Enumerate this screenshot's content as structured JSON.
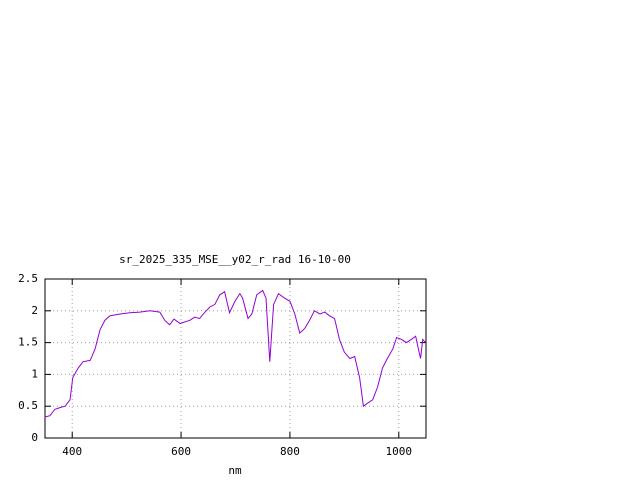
{
  "chart_data": {
    "type": "line",
    "title": "sr_2025_335_MSE__y02_r_rad 16-10-00",
    "x_label": "nm",
    "x": [
      350,
      359,
      368,
      378,
      387,
      396,
      401,
      411,
      420,
      433,
      442,
      451,
      460,
      469,
      488,
      506,
      524,
      543,
      561,
      570,
      579,
      587,
      598,
      616,
      625,
      634,
      644,
      653,
      662,
      671,
      680,
      689,
      699,
      708,
      713,
      723,
      730,
      739,
      750,
      756,
      763,
      770,
      779,
      790,
      800,
      809,
      818,
      827,
      836,
      845,
      855,
      864,
      873,
      882,
      891,
      900,
      910,
      919,
      928,
      935,
      943,
      952,
      961,
      970,
      979,
      989,
      996,
      1005,
      1014,
      1023,
      1031,
      1036,
      1040,
      1044,
      1049
    ],
    "series": [
      {
        "color": "#9400d3",
        "values": [
          0.33,
          0.35,
          0.45,
          0.48,
          0.5,
          0.6,
          0.95,
          1.1,
          1.2,
          1.22,
          1.4,
          1.7,
          1.85,
          1.92,
          1.95,
          1.97,
          1.98,
          2.0,
          1.98,
          1.85,
          1.78,
          1.87,
          1.8,
          1.85,
          1.9,
          1.88,
          1.98,
          2.06,
          2.1,
          2.25,
          2.3,
          1.97,
          2.15,
          2.27,
          2.2,
          1.88,
          1.95,
          2.25,
          2.32,
          2.2,
          1.2,
          2.1,
          2.27,
          2.2,
          2.15,
          1.95,
          1.65,
          1.72,
          1.85,
          2.0,
          1.95,
          1.98,
          1.92,
          1.88,
          1.55,
          1.35,
          1.25,
          1.28,
          0.95,
          0.5,
          0.55,
          0.6,
          0.8,
          1.1,
          1.25,
          1.4,
          1.58,
          1.55,
          1.5,
          1.55,
          1.6,
          1.4,
          1.25,
          1.55,
          1.5
        ]
      }
    ],
    "xlim": [
      350,
      1050
    ],
    "ylim": [
      0,
      2.5
    ],
    "xticks": [
      400,
      600,
      800,
      1000
    ],
    "yticks": [
      0,
      0.5,
      1,
      1.5,
      2,
      2.5
    ],
    "grid": true
  }
}
